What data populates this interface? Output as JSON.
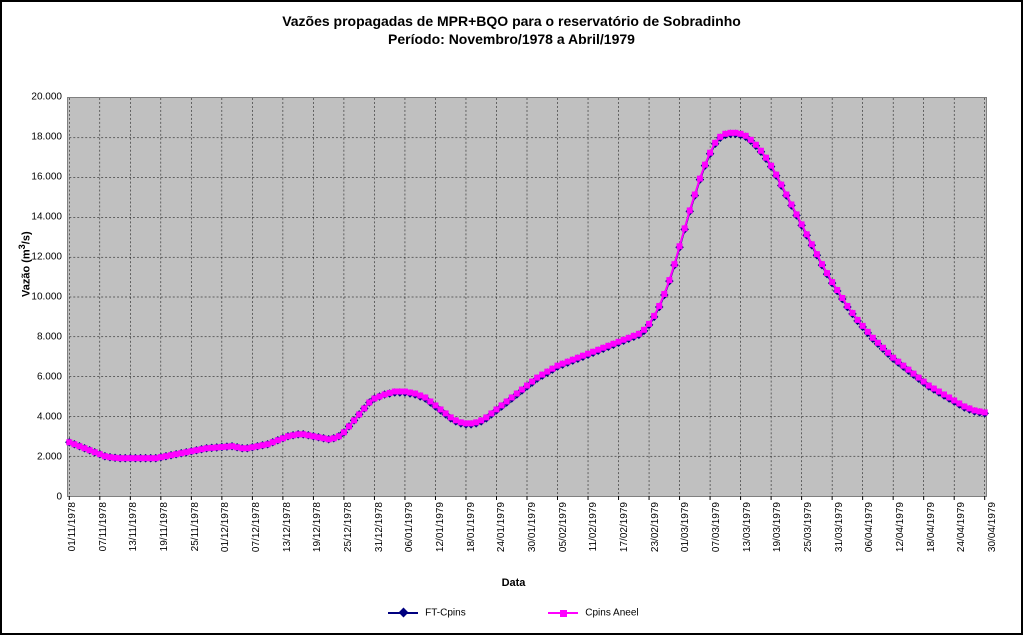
{
  "chart": {
    "type": "line",
    "title_line1": "Vazões propagadas de MPR+BQO para o reservatório de Sobradinho",
    "title_line2": "Período: Novembro/1978 a Abril/1979",
    "title_fontsize": 14,
    "xlabel": "Data",
    "ylabel": "Vazão (m³/s)",
    "label_fontsize": 11,
    "tick_fontsize": 10,
    "background_color": "#ffffff",
    "plot_background_color": "#c0c0c0",
    "grid_color": "#000000",
    "grid_dash": "2,2",
    "border_color": "#808080",
    "ylim": [
      0,
      20000
    ],
    "ytick_step": 2000,
    "ytick_labels": [
      "0",
      "2.000",
      "4.000",
      "6.000",
      "8.000",
      "10.000",
      "12.000",
      "14.000",
      "16.000",
      "18.000",
      "20.000"
    ],
    "x_categories": [
      "01/11/1978",
      "07/11/1978",
      "13/11/1978",
      "19/11/1978",
      "25/11/1978",
      "01/12/1978",
      "07/12/1978",
      "13/12/1978",
      "19/12/1978",
      "25/12/1978",
      "31/12/1978",
      "06/01/1979",
      "12/01/1979",
      "18/01/1979",
      "24/01/1979",
      "30/01/1979",
      "05/02/1979",
      "11/02/1979",
      "17/02/1979",
      "23/02/1979",
      "01/03/1979",
      "07/03/1979",
      "13/03/1979",
      "19/03/1979",
      "25/03/1979",
      "31/03/1979",
      "06/04/1979",
      "12/04/1979",
      "18/04/1979",
      "24/04/1979",
      "30/04/1979"
    ],
    "x_tick_count": 31,
    "n_points": 181,
    "series": [
      {
        "name": "FT-Cpins",
        "color": "#000080",
        "marker": "diamond",
        "marker_size": 5,
        "line_width": 2,
        "y": [
          2700,
          2600,
          2500,
          2400,
          2300,
          2200,
          2100,
          2000,
          1950,
          1920,
          1900,
          1900,
          1900,
          1900,
          1900,
          1900,
          1900,
          1900,
          1950,
          2000,
          2050,
          2100,
          2150,
          2200,
          2250,
          2300,
          2350,
          2400,
          2420,
          2440,
          2460,
          2480,
          2500,
          2450,
          2400,
          2400,
          2450,
          2500,
          2550,
          2600,
          2700,
          2800,
          2900,
          3000,
          3050,
          3100,
          3100,
          3050,
          3000,
          2950,
          2900,
          2850,
          2900,
          3000,
          3200,
          3500,
          3800,
          4100,
          4400,
          4700,
          4900,
          5000,
          5100,
          5150,
          5200,
          5200,
          5200,
          5150,
          5100,
          5000,
          4900,
          4700,
          4500,
          4300,
          4100,
          3900,
          3750,
          3650,
          3600,
          3600,
          3650,
          3750,
          3900,
          4100,
          4300,
          4500,
          4700,
          4900,
          5100,
          5300,
          5500,
          5700,
          5900,
          6050,
          6200,
          6350,
          6500,
          6600,
          6700,
          6800,
          6900,
          7000,
          7100,
          7200,
          7300,
          7400,
          7500,
          7600,
          7700,
          7800,
          7900,
          8000,
          8100,
          8300,
          8600,
          9000,
          9500,
          10100,
          10800,
          11600,
          12500,
          13400,
          14300,
          15100,
          15900,
          16600,
          17200,
          17700,
          18000,
          18150,
          18200,
          18200,
          18150,
          18050,
          17850,
          17600,
          17300,
          16950,
          16550,
          16100,
          15600,
          15100,
          14600,
          14100,
          13600,
          13100,
          12600,
          12100,
          11600,
          11150,
          10700,
          10300,
          9900,
          9500,
          9150,
          8800,
          8500,
          8200,
          7900,
          7650,
          7400,
          7150,
          6900,
          6700,
          6500,
          6300,
          6100,
          5900,
          5700,
          5500,
          5350,
          5200,
          5050,
          4900,
          4750,
          4600,
          4450,
          4350,
          4250,
          4200,
          4150
        ]
      },
      {
        "name": "Cpins Aneel",
        "color": "#ff00ff",
        "marker": "square",
        "marker_size": 5,
        "line_width": 2,
        "y": [
          2700,
          2600,
          2500,
          2400,
          2300,
          2200,
          2100,
          2000,
          1950,
          1920,
          1900,
          1900,
          1900,
          1900,
          1900,
          1900,
          1900,
          1900,
          1950,
          2000,
          2050,
          2100,
          2150,
          2200,
          2250,
          2300,
          2350,
          2400,
          2420,
          2440,
          2460,
          2480,
          2500,
          2450,
          2400,
          2400,
          2450,
          2500,
          2550,
          2600,
          2700,
          2800,
          2900,
          3000,
          3050,
          3100,
          3100,
          3050,
          3000,
          2950,
          2900,
          2850,
          2900,
          3000,
          3200,
          3500,
          3800,
          4100,
          4400,
          4700,
          4900,
          5000,
          5100,
          5180,
          5250,
          5250,
          5250,
          5200,
          5150,
          5050,
          4950,
          4750,
          4550,
          4350,
          4150,
          3950,
          3800,
          3700,
          3650,
          3650,
          3700,
          3800,
          3950,
          4150,
          4350,
          4550,
          4750,
          4950,
          5150,
          5350,
          5550,
          5750,
          5950,
          6100,
          6250,
          6400,
          6550,
          6650,
          6750,
          6850,
          6950,
          7050,
          7150,
          7250,
          7350,
          7450,
          7550,
          7650,
          7750,
          7850,
          7950,
          8050,
          8150,
          8350,
          8650,
          9050,
          9550,
          10150,
          10850,
          11650,
          12550,
          13450,
          14350,
          15150,
          15950,
          16650,
          17250,
          17750,
          18050,
          18200,
          18250,
          18250,
          18200,
          18100,
          17900,
          17650,
          17350,
          17000,
          16600,
          16150,
          15650,
          15150,
          14650,
          14150,
          13650,
          13150,
          12650,
          12150,
          11650,
          11200,
          10750,
          10350,
          9950,
          9550,
          9200,
          8850,
          8550,
          8250,
          7950,
          7700,
          7450,
          7200,
          6950,
          6750,
          6550,
          6350,
          6150,
          5950,
          5750,
          5550,
          5400,
          5250,
          5100,
          4950,
          4800,
          4650,
          4500,
          4400,
          4300,
          4250,
          4200
        ]
      }
    ],
    "legend_position": "bottom"
  }
}
